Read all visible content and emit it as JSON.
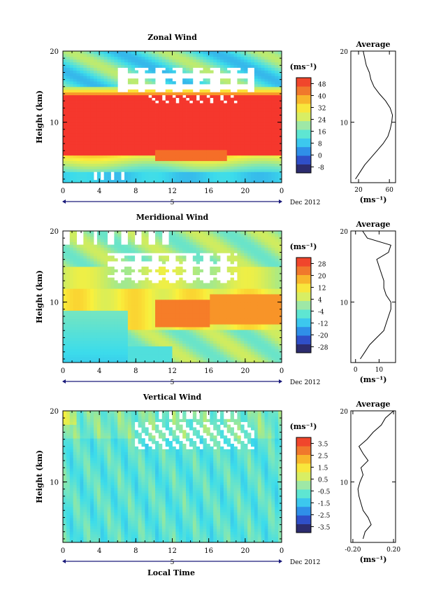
{
  "footer_label": "Local Time",
  "average_title": "Average",
  "unit_label": "(ms⁻¹)",
  "date_label": "Dec 2012",
  "day_label": "5",
  "y_axis_label": "Height (km)",
  "chart_data": [
    {
      "type": "heatmap",
      "title": "Zonal Wind",
      "xlabel": "",
      "ylabel": "Height (km)",
      "x_ticks": [
        "0",
        "4",
        "8",
        "12",
        "16",
        "20",
        "0"
      ],
      "y_ticks": [
        "10",
        "20"
      ],
      "xlim": [
        0,
        24
      ],
      "ylim": [
        1.5,
        20
      ],
      "colorbar_ticks": [
        "48",
        "40",
        "32",
        "24",
        "16",
        "8",
        "0",
        "-8"
      ],
      "colorbar_range": [
        -12,
        52
      ],
      "average_profile": {
        "xlabel": "(ms⁻¹)",
        "x_ticks": [
          "20",
          "60"
        ],
        "y_ticks": [
          "10",
          "20"
        ],
        "xlim": [
          10,
          68
        ],
        "height": [
          2,
          3,
          4,
          5,
          6,
          7,
          8,
          9,
          10,
          11,
          12,
          13,
          14,
          15,
          16,
          17,
          18,
          19,
          20
        ],
        "value": [
          16,
          22,
          28,
          36,
          44,
          52,
          58,
          61,
          63,
          64,
          61,
          55,
          47,
          40,
          36,
          34,
          30,
          28,
          26
        ]
      }
    },
    {
      "type": "heatmap",
      "title": "Meridional Wind",
      "xlabel": "",
      "ylabel": "Height (km)",
      "x_ticks": [
        "0",
        "4",
        "8",
        "12",
        "16",
        "20",
        "0"
      ],
      "y_ticks": [
        "10",
        "20"
      ],
      "xlim": [
        0,
        24
      ],
      "ylim": [
        1.5,
        20
      ],
      "colorbar_ticks": [
        "28",
        "20",
        "12",
        "4",
        "-4",
        "-12",
        "-20",
        "-28"
      ],
      "colorbar_range": [
        -32,
        32
      ],
      "average_profile": {
        "xlabel": "(ms⁻¹)",
        "x_ticks": [
          "0",
          "10"
        ],
        "y_ticks": [
          "10",
          "20"
        ],
        "xlim": [
          -2,
          17
        ],
        "height": [
          2,
          3,
          4,
          5,
          6,
          7,
          8,
          9,
          10,
          11,
          12,
          13,
          14,
          15,
          16,
          17,
          18,
          19,
          20
        ],
        "value": [
          2,
          4,
          6,
          9,
          12,
          13,
          14,
          15,
          15,
          13,
          12,
          12,
          11,
          10,
          9,
          14,
          15,
          5,
          3
        ]
      }
    },
    {
      "type": "heatmap",
      "title": "Vertical Wind",
      "xlabel": "Local Time",
      "ylabel": "Height (km)",
      "x_ticks": [
        "0",
        "4",
        "8",
        "12",
        "16",
        "20",
        "0"
      ],
      "y_ticks": [
        "10",
        "20"
      ],
      "xlim": [
        0,
        24
      ],
      "ylim": [
        1.5,
        20
      ],
      "colorbar_ticks": [
        "3.5",
        "2.5",
        "1.5",
        "0.5",
        "-0.5",
        "-1.5",
        "-2.5",
        "-3.5"
      ],
      "colorbar_range": [
        -4,
        4
      ],
      "average_profile": {
        "xlabel": "(ms⁻¹)",
        "x_ticks": [
          "-0.20",
          "0.20"
        ],
        "y_ticks": [
          "10",
          "20"
        ],
        "xlim": [
          -0.22,
          0.22
        ],
        "height": [
          2,
          3,
          4,
          5,
          6,
          7,
          8,
          9,
          10,
          11,
          12,
          13,
          14,
          15,
          16,
          17,
          18,
          19,
          20
        ],
        "value": [
          -0.1,
          -0.08,
          -0.02,
          -0.05,
          -0.1,
          -0.12,
          -0.14,
          -0.15,
          -0.13,
          -0.1,
          -0.12,
          -0.05,
          -0.1,
          -0.14,
          -0.06,
          0.0,
          0.08,
          0.12,
          0.2
        ]
      }
    }
  ]
}
